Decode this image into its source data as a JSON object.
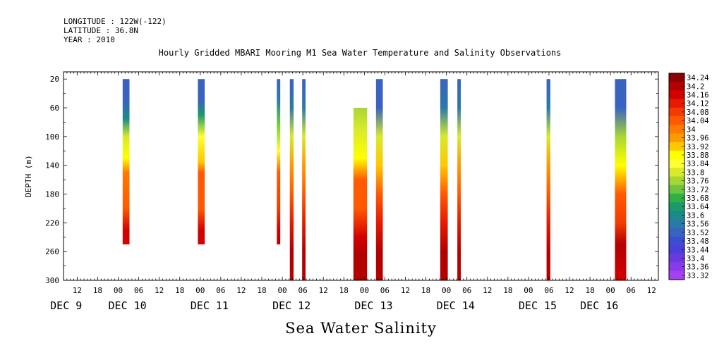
{
  "meta": {
    "longitude": "LONGITUDE : 122W(-122)",
    "latitude": "LATITUDE : 36.8N",
    "year": "YEAR : 2010"
  },
  "chart_data": {
    "type": "heatmap",
    "title": "Hourly Gridded MBARI Mooring M1 Sea Water Temperature and Salinity Observations",
    "bottom_title": "Sea Water Salinity",
    "ylabel": "DEPTH (m)",
    "xlabel": "",
    "x_unit": "hours since DEC 9 00:00, 2010",
    "xlim": [
      8,
      182
    ],
    "ylim": [
      300,
      10
    ],
    "y_ticks": [
      20,
      60,
      100,
      140,
      180,
      220,
      260,
      300
    ],
    "x_hour_ticks": [
      {
        "h": 12,
        "label": "12"
      },
      {
        "h": 18,
        "label": "18"
      },
      {
        "h": 24,
        "label": "00"
      },
      {
        "h": 30,
        "label": "06"
      },
      {
        "h": 36,
        "label": "12"
      },
      {
        "h": 42,
        "label": "18"
      },
      {
        "h": 48,
        "label": "00"
      },
      {
        "h": 54,
        "label": "06"
      },
      {
        "h": 60,
        "label": "12"
      },
      {
        "h": 66,
        "label": "18"
      },
      {
        "h": 72,
        "label": "00"
      },
      {
        "h": 78,
        "label": "06"
      },
      {
        "h": 84,
        "label": "12"
      },
      {
        "h": 90,
        "label": "18"
      },
      {
        "h": 96,
        "label": "00"
      },
      {
        "h": 102,
        "label": "06"
      },
      {
        "h": 108,
        "label": "12"
      },
      {
        "h": 114,
        "label": "18"
      },
      {
        "h": 120,
        "label": "00"
      },
      {
        "h": 126,
        "label": "06"
      },
      {
        "h": 132,
        "label": "12"
      },
      {
        "h": 138,
        "label": "18"
      },
      {
        "h": 144,
        "label": "00"
      },
      {
        "h": 150,
        "label": "06"
      },
      {
        "h": 156,
        "label": "12"
      },
      {
        "h": 162,
        "label": "18"
      },
      {
        "h": 168,
        "label": "00"
      },
      {
        "h": 174,
        "label": "06"
      },
      {
        "h": 180,
        "label": "12"
      }
    ],
    "x_day_labels": [
      {
        "h": 7,
        "label": "DEC  9"
      },
      {
        "h": 24,
        "label": "DEC 10"
      },
      {
        "h": 48,
        "label": "DEC 11"
      },
      {
        "h": 72,
        "label": "DEC 12"
      },
      {
        "h": 96,
        "label": "DEC 13"
      },
      {
        "h": 120,
        "label": "DEC 14"
      },
      {
        "h": 144,
        "label": "DEC 15"
      },
      {
        "h": 162,
        "label": "DEC 16"
      }
    ],
    "colorbar": {
      "levels": [
        "34.24",
        "34.2",
        "34.16",
        "34.12",
        "34.08",
        "34.04",
        "34",
        "33.96",
        "33.92",
        "33.88",
        "33.84",
        "33.8",
        "33.76",
        "33.72",
        "33.68",
        "33.64",
        "33.6",
        "33.56",
        "33.52",
        "33.48",
        "33.44",
        "33.4",
        "33.36",
        "33.32"
      ],
      "colors": [
        "#8b0000",
        "#b30000",
        "#d40000",
        "#e61a00",
        "#f23c00",
        "#ff5a00",
        "#ff7a00",
        "#ff9900",
        "#ffc800",
        "#ffff00",
        "#ffff33",
        "#d8ea2b",
        "#a8d633",
        "#6cc441",
        "#2fb043",
        "#1e9a6a",
        "#1a8a8a",
        "#2a7aa8",
        "#3a63c0",
        "#3a4fd0",
        "#4a3fd8",
        "#6a3ae0",
        "#8a3aec",
        "#a640f0"
      ]
    },
    "columns": [
      {
        "x0": 25.3,
        "x1": 27.3,
        "top": 20,
        "bottom": 250,
        "profile": [
          [
            20,
            33.5
          ],
          [
            50,
            33.52
          ],
          [
            75,
            33.62
          ],
          [
            100,
            33.8
          ],
          [
            130,
            33.9
          ],
          [
            150,
            34.0
          ],
          [
            200,
            34.04
          ],
          [
            230,
            34.14
          ],
          [
            250,
            34.16
          ]
        ]
      },
      {
        "x0": 47.3,
        "x1": 49.3,
        "top": 20,
        "bottom": 250,
        "profile": [
          [
            20,
            33.5
          ],
          [
            50,
            33.52
          ],
          [
            70,
            33.66
          ],
          [
            100,
            33.82
          ],
          [
            135,
            33.92
          ],
          [
            150,
            34.02
          ],
          [
            200,
            34.05
          ],
          [
            230,
            34.14
          ],
          [
            250,
            34.16
          ]
        ]
      },
      {
        "x0": 70.4,
        "x1": 71.4,
        "top": 20,
        "bottom": 250,
        "profile": [
          [
            20,
            33.5
          ],
          [
            50,
            33.56
          ],
          [
            80,
            33.7
          ],
          [
            120,
            33.85
          ],
          [
            150,
            34.02
          ],
          [
            200,
            34.06
          ],
          [
            230,
            34.14
          ],
          [
            250,
            34.18
          ]
        ]
      },
      {
        "x0": 74.2,
        "x1": 75.3,
        "top": 20,
        "bottom": 300,
        "profile": [
          [
            20,
            33.5
          ],
          [
            60,
            33.58
          ],
          [
            100,
            33.8
          ],
          [
            140,
            33.95
          ],
          [
            180,
            34.02
          ],
          [
            220,
            34.1
          ],
          [
            260,
            34.2
          ],
          [
            300,
            34.22
          ]
        ]
      },
      {
        "x0": 77.8,
        "x1": 78.8,
        "top": 20,
        "bottom": 300,
        "profile": [
          [
            20,
            33.5
          ],
          [
            60,
            33.58
          ],
          [
            100,
            33.8
          ],
          [
            140,
            33.95
          ],
          [
            180,
            34.02
          ],
          [
            220,
            34.1
          ],
          [
            260,
            34.2
          ],
          [
            300,
            34.22
          ]
        ]
      },
      {
        "x0": 92.8,
        "x1": 96.8,
        "top": 60,
        "bottom": 300,
        "profile": [
          [
            60,
            33.76
          ],
          [
            90,
            33.8
          ],
          [
            130,
            33.88
          ],
          [
            160,
            34.02
          ],
          [
            200,
            34.04
          ],
          [
            240,
            34.14
          ],
          [
            260,
            34.18
          ],
          [
            300,
            34.2
          ]
        ]
      },
      {
        "x0": 99.4,
        "x1": 101.4,
        "top": 20,
        "bottom": 300,
        "profile": [
          [
            20,
            33.5
          ],
          [
            60,
            33.54
          ],
          [
            100,
            33.78
          ],
          [
            140,
            33.92
          ],
          [
            180,
            34.02
          ],
          [
            220,
            34.1
          ],
          [
            260,
            34.2
          ],
          [
            300,
            34.2
          ]
        ]
      },
      {
        "x0": 118.2,
        "x1": 120.4,
        "top": 20,
        "bottom": 300,
        "profile": [
          [
            20,
            33.5
          ],
          [
            60,
            33.56
          ],
          [
            100,
            33.8
          ],
          [
            140,
            33.94
          ],
          [
            180,
            34.02
          ],
          [
            220,
            34.1
          ],
          [
            260,
            34.2
          ],
          [
            300,
            34.2
          ]
        ]
      },
      {
        "x0": 123.2,
        "x1": 124.2,
        "top": 20,
        "bottom": 300,
        "profile": [
          [
            20,
            33.5
          ],
          [
            60,
            33.58
          ],
          [
            100,
            33.8
          ],
          [
            140,
            33.95
          ],
          [
            180,
            34.02
          ],
          [
            220,
            34.1
          ],
          [
            260,
            34.2
          ],
          [
            300,
            34.22
          ]
        ]
      },
      {
        "x0": 149.3,
        "x1": 150.4,
        "top": 20,
        "bottom": 300,
        "profile": [
          [
            20,
            33.5
          ],
          [
            60,
            33.58
          ],
          [
            100,
            33.8
          ],
          [
            140,
            33.95
          ],
          [
            180,
            34.02
          ],
          [
            220,
            34.1
          ],
          [
            260,
            34.2
          ],
          [
            300,
            34.22
          ]
        ]
      },
      {
        "x0": 169.3,
        "x1": 172.6,
        "top": 20,
        "bottom": 300,
        "profile": [
          [
            20,
            33.5
          ],
          [
            60,
            33.54
          ],
          [
            100,
            33.76
          ],
          [
            140,
            33.9
          ],
          [
            180,
            34.02
          ],
          [
            220,
            34.08
          ],
          [
            250,
            34.18
          ],
          [
            300,
            34.16
          ]
        ]
      }
    ]
  }
}
